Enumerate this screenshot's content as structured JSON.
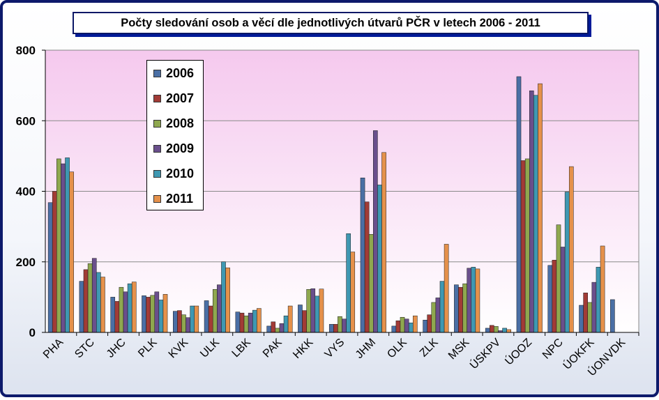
{
  "chart_data": {
    "type": "bar",
    "title": "Počty sledování osob a věcí dle jednotlivých útvarů PČR v letech 2006 - 2011",
    "xlabel": "",
    "ylabel": "",
    "ylim": [
      0,
      800
    ],
    "yticks": [
      0,
      200,
      400,
      600,
      800
    ],
    "grid": true,
    "legend_position": "top-left",
    "categories": [
      "PHA",
      "STC",
      "JHC",
      "PLK",
      "KVK",
      "ULK",
      "LBK",
      "PAK",
      "HKK",
      "VYS",
      "JHM",
      "OLK",
      "ZLK",
      "MSK",
      "ÚSKPV",
      "ÚOOZ",
      "NPC",
      "ÚOKFK",
      "ÚONVDK"
    ],
    "series": [
      {
        "name": "2006",
        "color": "#4a6fa5",
        "values": [
          368,
          145,
          100,
          104,
          60,
          90,
          58,
          18,
          78,
          23,
          438,
          18,
          35,
          135,
          12,
          725,
          190,
          77,
          93
        ]
      },
      {
        "name": "2007",
        "color": "#a23b36",
        "values": [
          400,
          178,
          88,
          100,
          62,
          75,
          55,
          30,
          62,
          23,
          370,
          33,
          50,
          128,
          20,
          487,
          205,
          112,
          null
        ]
      },
      {
        "name": "2008",
        "color": "#8fa84f",
        "values": [
          492,
          195,
          128,
          105,
          50,
          122,
          47,
          12,
          122,
          45,
          278,
          43,
          85,
          138,
          17,
          492,
          305,
          85,
          null
        ]
      },
      {
        "name": "2009",
        "color": "#6a4f8c",
        "values": [
          478,
          210,
          115,
          115,
          42,
          135,
          55,
          25,
          124,
          38,
          572,
          38,
          98,
          182,
          5,
          685,
          242,
          142,
          null
        ]
      },
      {
        "name": "2010",
        "color": "#3f98b2",
        "values": [
          495,
          170,
          138,
          92,
          75,
          200,
          63,
          47,
          103,
          280,
          418,
          27,
          145,
          185,
          12,
          672,
          398,
          185,
          null
        ]
      },
      {
        "name": "2011",
        "color": "#e5914b",
        "values": [
          455,
          157,
          143,
          108,
          75,
          183,
          68,
          75,
          123,
          228,
          510,
          47,
          250,
          180,
          8,
          705,
          470,
          245,
          null
        ]
      }
    ]
  }
}
